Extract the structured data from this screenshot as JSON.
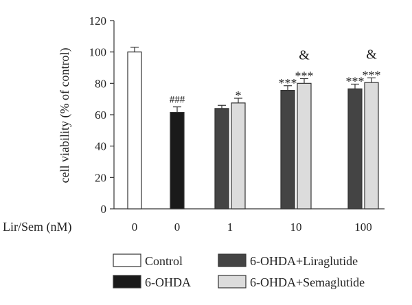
{
  "chart_data": {
    "type": "bar",
    "ylabel": "cell viability (% of control)",
    "xlabel": "Lir/Sem (nM)",
    "ylim": [
      0,
      120
    ],
    "yticks": [
      0,
      20,
      40,
      60,
      80,
      100,
      120
    ],
    "grid": false,
    "legend_placement": "bottom",
    "series": [
      {
        "name": "Control",
        "color": "#ffffff"
      },
      {
        "name": "6-OHDA",
        "color": "#1a1a1a"
      },
      {
        "name": "6-OHDA+Liraglutide",
        "color": "#444444"
      },
      {
        "name": "6-OHDA+Semaglutide",
        "color": "#dcdcdc"
      }
    ],
    "groups": [
      {
        "dose": "0",
        "bars": [
          {
            "series": "Control",
            "value": 100,
            "err": 3,
            "annotations": []
          }
        ]
      },
      {
        "dose": "0",
        "bars": [
          {
            "series": "6-OHDA",
            "value": 61.5,
            "err": 3.5,
            "annotations": [
              "###"
            ]
          }
        ]
      },
      {
        "dose": "1",
        "bars": [
          {
            "series": "6-OHDA+Liraglutide",
            "value": 64,
            "err": 2,
            "annotations": []
          },
          {
            "series": "6-OHDA+Semaglutide",
            "value": 67.5,
            "err": 3,
            "annotations": [
              "*"
            ]
          }
        ]
      },
      {
        "dose": "10",
        "bars": [
          {
            "series": "6-OHDA+Liraglutide",
            "value": 75.5,
            "err": 3,
            "annotations": [
              "***"
            ]
          },
          {
            "series": "6-OHDA+Semaglutide",
            "value": 80,
            "err": 3,
            "annotations": [
              "***",
              "&"
            ]
          }
        ]
      },
      {
        "dose": "100",
        "bars": [
          {
            "series": "6-OHDA+Liraglutide",
            "value": 76.5,
            "err": 3,
            "annotations": [
              "***"
            ]
          },
          {
            "series": "6-OHDA+Semaglutide",
            "value": 80.5,
            "err": 3,
            "annotations": [
              "***",
              "&"
            ]
          }
        ]
      }
    ]
  }
}
